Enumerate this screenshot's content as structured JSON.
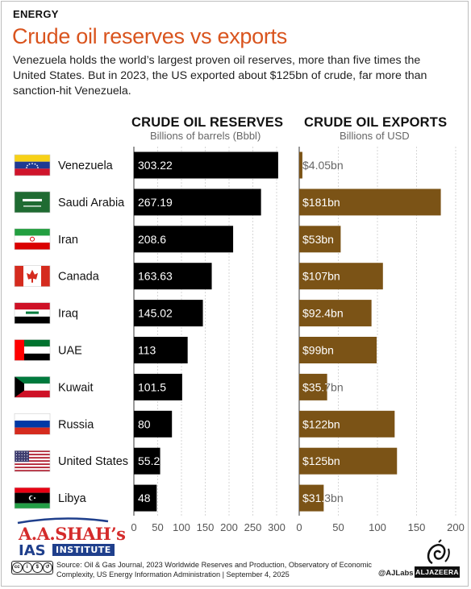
{
  "header": {
    "category": "ENERGY",
    "title": "Crude oil reserves vs exports",
    "subtitle": "Venezuela holds the world’s largest proven oil reserves, more than five times the United States. But in 2023, the US exported about $125bn of crude, far more than sanction-hit Venezuela."
  },
  "colors": {
    "accent": "#d9541e",
    "reserves_bar": "#000000",
    "exports_bar": "#7b5316",
    "logo_red": "#d42b2b",
    "logo_blue": "#1f3f8c"
  },
  "chart_data": [
    {
      "type": "bar",
      "orientation": "horizontal",
      "title": "CRUDE OIL RESERVES",
      "subtitle": "Billions of barrels (Bbbl)",
      "categories": [
        "Venezuela",
        "Saudi Arabia",
        "Iran",
        "Canada",
        "Iraq",
        "UAE",
        "Kuwait",
        "Russia",
        "United States",
        "Libya"
      ],
      "values": [
        303.22,
        267.19,
        208.6,
        163.63,
        145.02,
        113,
        101.5,
        80,
        55.2,
        48
      ],
      "value_labels": [
        "303.22",
        "267.19",
        "208.6",
        "163.63",
        "145.02",
        "113",
        "101.5",
        "80",
        "55.2",
        "48"
      ],
      "xlim": [
        0,
        300
      ],
      "ticks": [
        0,
        50,
        100,
        150,
        200,
        250,
        300
      ]
    },
    {
      "type": "bar",
      "orientation": "horizontal",
      "title": "CRUDE OIL EXPORTS",
      "subtitle": "Billions of USD",
      "categories": [
        "Venezuela",
        "Saudi Arabia",
        "Iran",
        "Canada",
        "Iraq",
        "UAE",
        "Kuwait",
        "Russia",
        "United States",
        "Libya"
      ],
      "values": [
        4.05,
        181,
        53,
        107,
        92.4,
        99,
        35.7,
        122,
        125,
        31.3
      ],
      "value_labels": [
        "$4.05bn",
        "$181bn",
        "$53bn",
        "$107bn",
        "$92.4bn",
        "$99bn",
        "$35.7bn",
        "$122bn",
        "$125bn",
        "$31.3bn"
      ],
      "xlim": [
        0,
        200
      ],
      "ticks": [
        0,
        50,
        100,
        150,
        200
      ]
    }
  ],
  "flags": [
    "venezuela-flag",
    "saudi-arabia-flag",
    "iran-flag",
    "canada-flag",
    "iraq-flag",
    "uae-flag",
    "kuwait-flag",
    "russia-flag",
    "united-states-flag",
    "libya-flag"
  ],
  "footer": {
    "source": "Source: Oil & Gas Journal, 2023 Worldwide Reserves and Production, Observatory of Economic Complexity, US Energy Information Administration  |  September 4, 2025",
    "handle": "@AJLabs",
    "brand": "ALJAZEERA",
    "license_icons": [
      "cc",
      "by",
      "nc",
      "sa"
    ],
    "watermark_line1": "A.A.SHAH’s",
    "watermark_line2": "IAS",
    "watermark_line3": "INSTITUTE"
  }
}
